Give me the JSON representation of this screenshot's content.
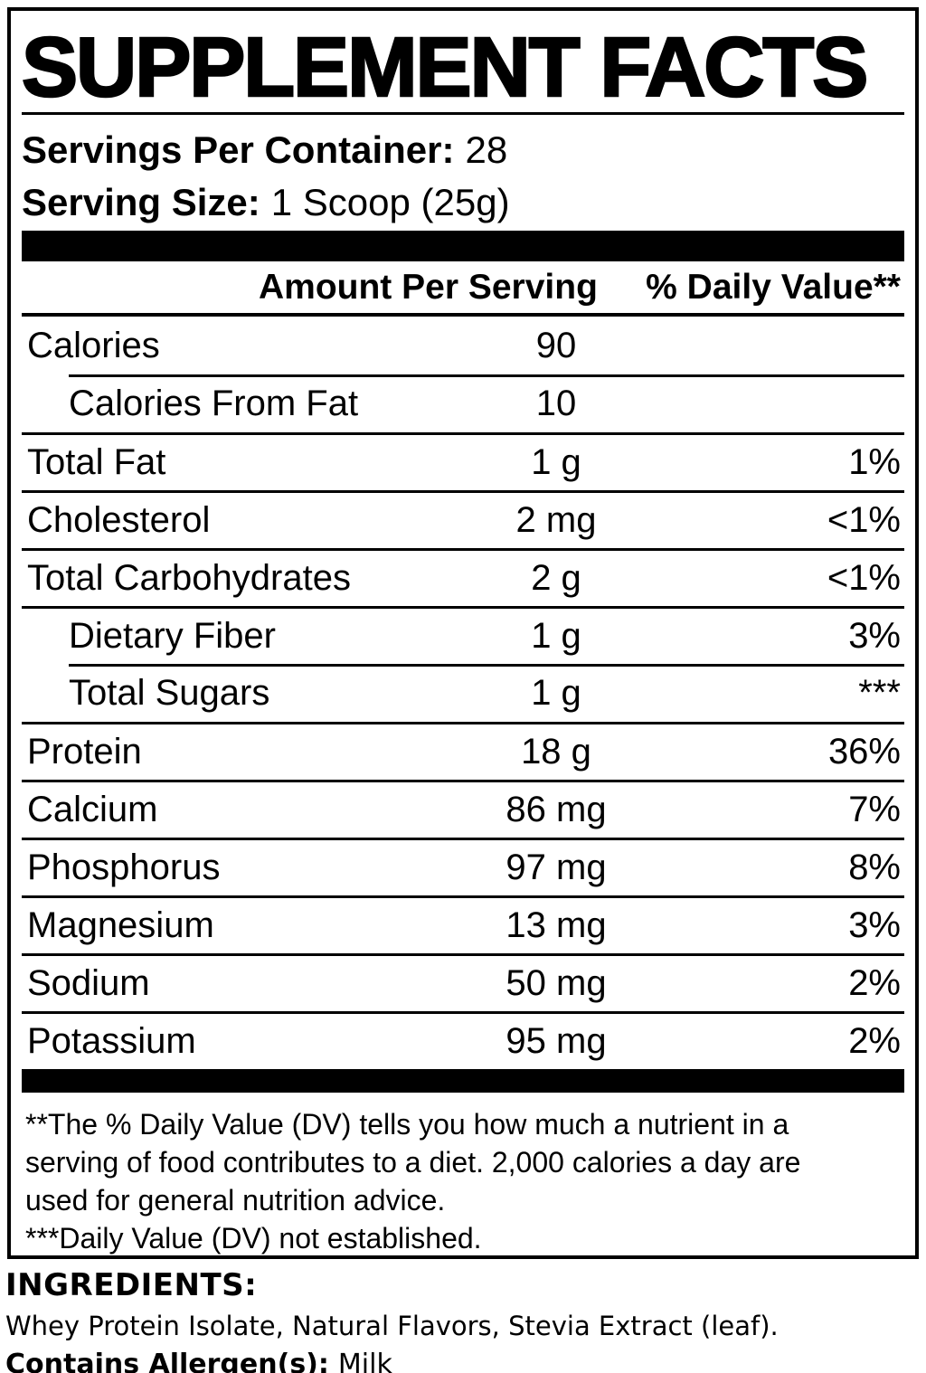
{
  "panel": {
    "title": "SUPPLEMENT FACTS",
    "servings_per_container": {
      "label": "Servings Per Container:",
      "value": "28"
    },
    "serving_size": {
      "label": "Serving Size:",
      "value": "1 Scoop (25g)"
    },
    "columns": {
      "amount": "Amount Per Serving",
      "daily_value": "% Daily Value**"
    },
    "rows": [
      {
        "name": "Calories",
        "amount": "90",
        "dv": ""
      },
      {
        "name": "Calories From Fat",
        "amount": "10",
        "dv": ""
      },
      {
        "name": "Total Fat",
        "amount": "1 g",
        "dv": "1%"
      },
      {
        "name": "Cholesterol",
        "amount": "2 mg",
        "dv": "<1%"
      },
      {
        "name": "Total Carbohydrates",
        "amount": "2 g",
        "dv": "<1%"
      },
      {
        "name": "Dietary Fiber",
        "amount": "1 g",
        "dv": "3%"
      },
      {
        "name": "Total Sugars",
        "amount": "1 g",
        "dv": "***"
      },
      {
        "name": "Protein",
        "amount": "18 g",
        "dv": "36%"
      },
      {
        "name": "Calcium",
        "amount": "86 mg",
        "dv": "7%"
      },
      {
        "name": "Phosphorus",
        "amount": "97 mg",
        "dv": "8%"
      },
      {
        "name": "Magnesium",
        "amount": "13 mg",
        "dv": "3%"
      },
      {
        "name": "Sodium",
        "amount": "50 mg",
        "dv": "2%"
      },
      {
        "name": "Potassium",
        "amount": "95 mg",
        "dv": "2%"
      }
    ],
    "footnote_lines": [
      "**The % Daily Value (DV) tells you how much a nutrient in a",
      "serving of food contributes to a diet. 2,000 calories a day are",
      "used for general nutrition advice.",
      "***Daily Value (DV) not established."
    ]
  },
  "ingredients": {
    "heading": "INGREDIENTS:",
    "list": "Whey Protein Isolate, Natural Flavors, Stevia Extract (leaf).",
    "allergen_label": "Contains Allergen(s):",
    "allergen_value": "Milk"
  },
  "colors": {
    "ink": "#000000",
    "paper": "#ffffff"
  }
}
